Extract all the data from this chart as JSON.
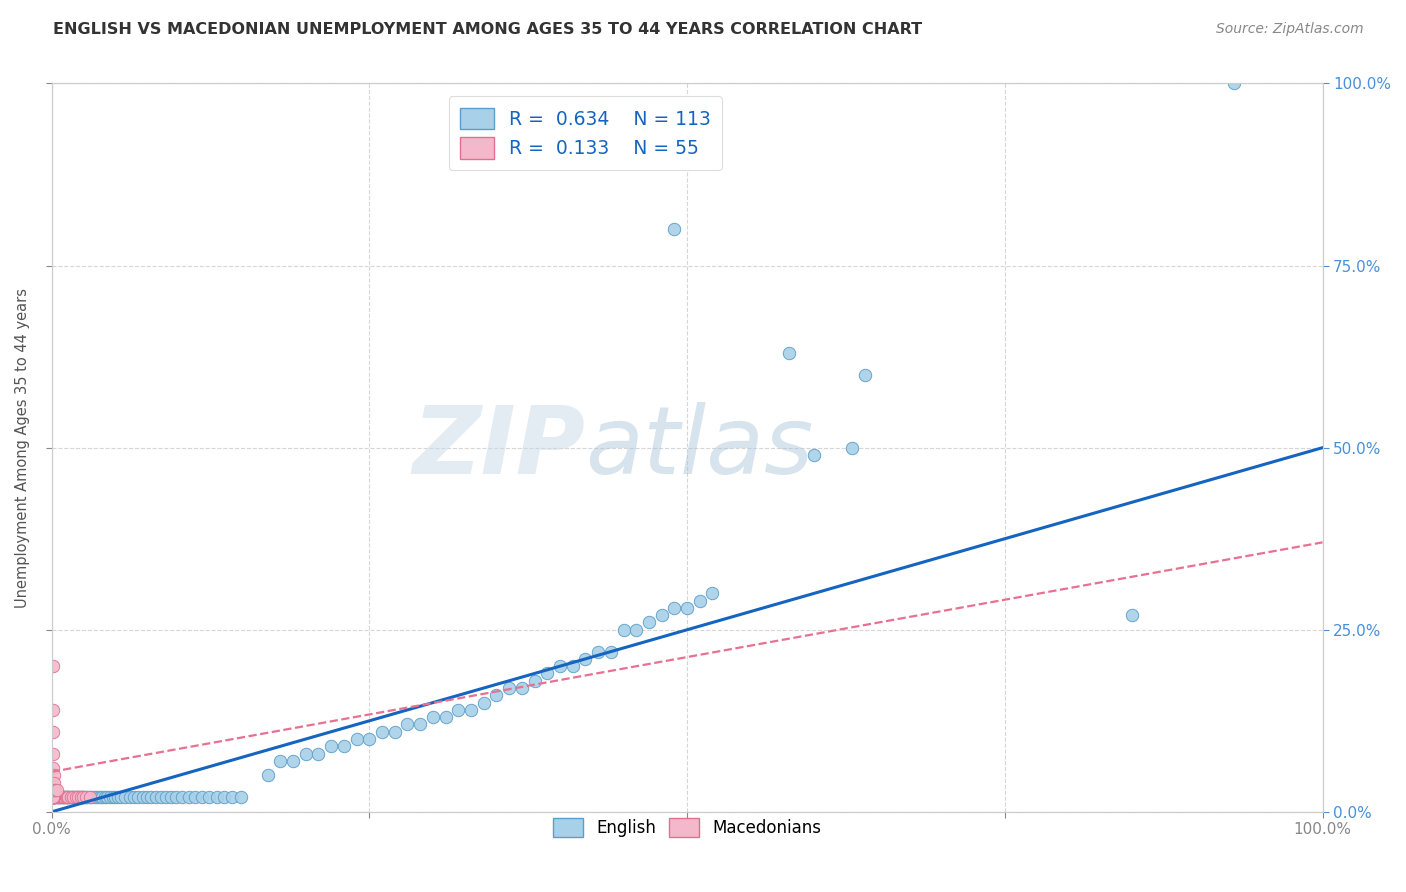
{
  "title": "ENGLISH VS MACEDONIAN UNEMPLOYMENT AMONG AGES 35 TO 44 YEARS CORRELATION CHART",
  "source": "Source: ZipAtlas.com",
  "ylabel": "Unemployment Among Ages 35 to 44 years",
  "xlim": [
    0,
    1
  ],
  "ylim": [
    0,
    1
  ],
  "xtick_vals": [
    0.0,
    0.25,
    0.5,
    0.75,
    1.0
  ],
  "xticklabels": [
    "0.0%",
    "",
    "",
    "",
    "100.0%"
  ],
  "ytick_vals": [
    0.0,
    0.25,
    0.5,
    0.75,
    1.0
  ],
  "yticklabels_left": [
    "",
    "",
    "",
    "",
    ""
  ],
  "yticklabels_right": [
    "0.0%",
    "25.0%",
    "50.0%",
    "75.0%",
    "100.0%"
  ],
  "english_face": "#A8D0E8",
  "english_edge": "#5B9EC9",
  "macedonian_face": "#F4B8CC",
  "macedonian_edge": "#E07090",
  "trend_eng_color": "#1565C0",
  "trend_mac_color": "#E87090",
  "watermark_color": "#D0DCE8",
  "grid_color": "#CCCCCC",
  "bg_color": "#FFFFFF",
  "title_color": "#333333",
  "source_color": "#888888",
  "right_axis_color": "#4A90D9",
  "legend_label_color": "#1565C0",
  "eng_trend_x0": 0.0,
  "eng_trend_y0": 0.0,
  "eng_trend_x1": 1.0,
  "eng_trend_y1": 0.5,
  "mac_trend_x0": 0.0,
  "mac_trend_y0": 0.055,
  "mac_trend_x1": 1.0,
  "mac_trend_y1": 0.37,
  "english_points": [
    [
      0.002,
      0.02
    ],
    [
      0.003,
      0.02
    ],
    [
      0.004,
      0.02
    ],
    [
      0.005,
      0.02
    ],
    [
      0.006,
      0.02
    ],
    [
      0.007,
      0.02
    ],
    [
      0.008,
      0.02
    ],
    [
      0.009,
      0.02
    ],
    [
      0.01,
      0.02
    ],
    [
      0.011,
      0.02
    ],
    [
      0.012,
      0.02
    ],
    [
      0.013,
      0.02
    ],
    [
      0.014,
      0.02
    ],
    [
      0.015,
      0.02
    ],
    [
      0.016,
      0.02
    ],
    [
      0.017,
      0.02
    ],
    [
      0.018,
      0.02
    ],
    [
      0.019,
      0.02
    ],
    [
      0.02,
      0.02
    ],
    [
      0.021,
      0.02
    ],
    [
      0.022,
      0.02
    ],
    [
      0.023,
      0.02
    ],
    [
      0.024,
      0.02
    ],
    [
      0.025,
      0.02
    ],
    [
      0.026,
      0.02
    ],
    [
      0.028,
      0.02
    ],
    [
      0.03,
      0.02
    ],
    [
      0.032,
      0.02
    ],
    [
      0.034,
      0.02
    ],
    [
      0.036,
      0.02
    ],
    [
      0.038,
      0.02
    ],
    [
      0.04,
      0.02
    ],
    [
      0.042,
      0.02
    ],
    [
      0.044,
      0.02
    ],
    [
      0.046,
      0.02
    ],
    [
      0.048,
      0.02
    ],
    [
      0.05,
      0.02
    ],
    [
      0.052,
      0.02
    ],
    [
      0.055,
      0.02
    ],
    [
      0.058,
      0.02
    ],
    [
      0.062,
      0.02
    ],
    [
      0.065,
      0.02
    ],
    [
      0.068,
      0.02
    ],
    [
      0.072,
      0.02
    ],
    [
      0.075,
      0.02
    ],
    [
      0.078,
      0.02
    ],
    [
      0.082,
      0.02
    ],
    [
      0.086,
      0.02
    ],
    [
      0.09,
      0.02
    ],
    [
      0.094,
      0.02
    ],
    [
      0.098,
      0.02
    ],
    [
      0.103,
      0.02
    ],
    [
      0.108,
      0.02
    ],
    [
      0.113,
      0.02
    ],
    [
      0.118,
      0.02
    ],
    [
      0.124,
      0.02
    ],
    [
      0.13,
      0.02
    ],
    [
      0.136,
      0.02
    ],
    [
      0.142,
      0.02
    ],
    [
      0.149,
      0.02
    ],
    [
      0.001,
      0.02
    ],
    [
      0.001,
      0.02
    ],
    [
      0.001,
      0.02
    ],
    [
      0.001,
      0.02
    ],
    [
      0.001,
      0.02
    ],
    [
      0.001,
      0.02
    ],
    [
      0.001,
      0.02
    ],
    [
      0.001,
      0.02
    ],
    [
      0.17,
      0.05
    ],
    [
      0.18,
      0.07
    ],
    [
      0.19,
      0.07
    ],
    [
      0.2,
      0.08
    ],
    [
      0.21,
      0.08
    ],
    [
      0.22,
      0.09
    ],
    [
      0.23,
      0.09
    ],
    [
      0.24,
      0.1
    ],
    [
      0.25,
      0.1
    ],
    [
      0.26,
      0.11
    ],
    [
      0.27,
      0.11
    ],
    [
      0.28,
      0.12
    ],
    [
      0.29,
      0.12
    ],
    [
      0.3,
      0.13
    ],
    [
      0.31,
      0.13
    ],
    [
      0.32,
      0.14
    ],
    [
      0.33,
      0.14
    ],
    [
      0.34,
      0.15
    ],
    [
      0.35,
      0.16
    ],
    [
      0.36,
      0.17
    ],
    [
      0.37,
      0.17
    ],
    [
      0.38,
      0.18
    ],
    [
      0.39,
      0.19
    ],
    [
      0.4,
      0.2
    ],
    [
      0.41,
      0.2
    ],
    [
      0.42,
      0.21
    ],
    [
      0.43,
      0.22
    ],
    [
      0.44,
      0.22
    ],
    [
      0.45,
      0.25
    ],
    [
      0.46,
      0.25
    ],
    [
      0.47,
      0.26
    ],
    [
      0.48,
      0.27
    ],
    [
      0.49,
      0.28
    ],
    [
      0.5,
      0.28
    ],
    [
      0.51,
      0.29
    ],
    [
      0.52,
      0.3
    ],
    [
      0.6,
      0.49
    ],
    [
      0.63,
      0.5
    ],
    [
      0.49,
      0.8
    ],
    [
      0.58,
      0.63
    ],
    [
      0.64,
      0.6
    ],
    [
      0.85,
      0.27
    ],
    [
      0.93,
      1.0
    ]
  ],
  "macedonian_points": [
    [
      0.001,
      0.02
    ],
    [
      0.002,
      0.02
    ],
    [
      0.003,
      0.02
    ],
    [
      0.004,
      0.02
    ],
    [
      0.005,
      0.02
    ],
    [
      0.006,
      0.02
    ],
    [
      0.007,
      0.02
    ],
    [
      0.008,
      0.02
    ],
    [
      0.009,
      0.02
    ],
    [
      0.01,
      0.02
    ],
    [
      0.011,
      0.02
    ],
    [
      0.012,
      0.02
    ],
    [
      0.001,
      0.02
    ],
    [
      0.001,
      0.02
    ],
    [
      0.001,
      0.02
    ],
    [
      0.001,
      0.02
    ],
    [
      0.001,
      0.02
    ],
    [
      0.001,
      0.02
    ],
    [
      0.001,
      0.02
    ],
    [
      0.001,
      0.02
    ],
    [
      0.001,
      0.02
    ],
    [
      0.001,
      0.02
    ],
    [
      0.001,
      0.02
    ],
    [
      0.001,
      0.02
    ],
    [
      0.001,
      0.02
    ],
    [
      0.001,
      0.02
    ],
    [
      0.001,
      0.02
    ],
    [
      0.001,
      0.02
    ],
    [
      0.001,
      0.02
    ],
    [
      0.001,
      0.02
    ],
    [
      0.001,
      0.02
    ],
    [
      0.001,
      0.02
    ],
    [
      0.001,
      0.02
    ],
    [
      0.001,
      0.02
    ],
    [
      0.001,
      0.02
    ],
    [
      0.001,
      0.02
    ],
    [
      0.013,
      0.02
    ],
    [
      0.015,
      0.02
    ],
    [
      0.017,
      0.02
    ],
    [
      0.019,
      0.02
    ],
    [
      0.021,
      0.02
    ],
    [
      0.023,
      0.02
    ],
    [
      0.025,
      0.02
    ],
    [
      0.027,
      0.02
    ],
    [
      0.03,
      0.02
    ],
    [
      0.001,
      0.2
    ],
    [
      0.001,
      0.14
    ],
    [
      0.001,
      0.11
    ],
    [
      0.001,
      0.08
    ],
    [
      0.001,
      0.06
    ],
    [
      0.002,
      0.05
    ],
    [
      0.002,
      0.04
    ],
    [
      0.002,
      0.03
    ],
    [
      0.003,
      0.03
    ],
    [
      0.004,
      0.03
    ]
  ]
}
